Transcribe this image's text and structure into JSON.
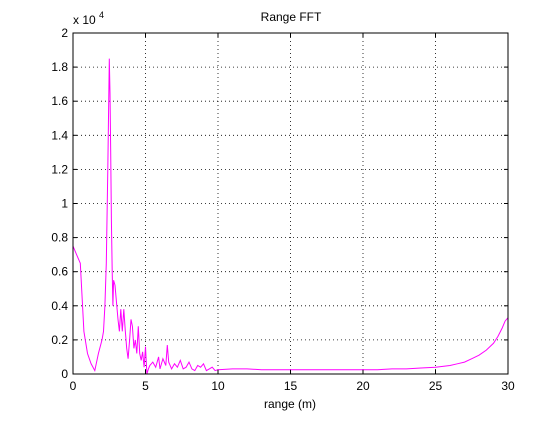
{
  "figure": {
    "background": "#ffffff"
  },
  "chart_data": {
    "type": "line",
    "title": "Range FFT",
    "xlabel": "range (m)",
    "ylabel": "",
    "y_exponent_label": "x 10",
    "y_exponent_power": "4",
    "xlim": [
      0,
      30
    ],
    "ylim": [
      0,
      20000
    ],
    "x_ticks": [
      0,
      5,
      10,
      15,
      20,
      25,
      30
    ],
    "x_tick_labels": [
      "0",
      "5",
      "10",
      "15",
      "20",
      "25",
      "30"
    ],
    "y_ticks": [
      0,
      2000,
      4000,
      6000,
      8000,
      10000,
      12000,
      14000,
      16000,
      18000,
      20000
    ],
    "y_tick_labels": [
      "0",
      "0.2",
      "0.4",
      "0.6",
      "0.8",
      "1",
      "1.2",
      "1.4",
      "1.6",
      "1.8",
      "2"
    ],
    "grid": true,
    "grid_style": "dotted",
    "legend": null,
    "series": [
      {
        "color": "#ff00ff",
        "x": [
          0,
          0.25,
          0.5,
          0.75,
          1.0,
          1.25,
          1.5,
          1.75,
          2.0,
          2.1,
          2.2,
          2.3,
          2.4,
          2.5,
          2.55,
          2.6,
          2.65,
          2.7,
          2.75,
          2.8,
          2.9,
          3.0,
          3.1,
          3.2,
          3.3,
          3.4,
          3.5,
          3.6,
          3.7,
          3.8,
          3.9,
          4.0,
          4.1,
          4.2,
          4.3,
          4.4,
          4.5,
          4.6,
          4.7,
          4.8,
          4.9,
          5.0,
          5.1,
          5.2,
          5.3,
          5.5,
          5.7,
          5.9,
          6.0,
          6.2,
          6.4,
          6.5,
          6.6,
          6.8,
          7.0,
          7.2,
          7.4,
          7.6,
          7.8,
          8.0,
          8.2,
          8.4,
          8.6,
          8.8,
          9.0,
          9.2,
          9.4,
          9.6,
          9.8,
          10,
          11,
          12,
          13,
          14,
          15,
          16,
          17,
          18,
          19,
          20,
          21,
          22,
          23,
          24,
          25,
          26,
          26.5,
          27,
          27.5,
          28,
          28.5,
          29,
          29.3,
          29.6,
          29.8,
          30
        ],
        "y": [
          7500,
          7000,
          6500,
          2500,
          1200,
          600,
          200,
          1200,
          2000,
          2500,
          4000,
          6500,
          12000,
          18500,
          16500,
          13000,
          9000,
          6000,
          4000,
          5500,
          5200,
          4200,
          3200,
          2500,
          3800,
          2500,
          3800,
          2600,
          1500,
          900,
          2000,
          3200,
          2800,
          1500,
          2000,
          1200,
          2800,
          1200,
          800,
          1300,
          400,
          1600,
          0,
          300,
          500,
          700,
          400,
          1000,
          300,
          900,
          500,
          1700,
          700,
          300,
          600,
          400,
          800,
          300,
          400,
          700,
          300,
          200,
          500,
          400,
          600,
          200,
          300,
          400,
          200,
          250,
          300,
          300,
          250,
          250,
          250,
          250,
          250,
          250,
          250,
          250,
          250,
          300,
          300,
          350,
          400,
          500,
          600,
          700,
          900,
          1100,
          1400,
          1800,
          2200,
          2700,
          3100,
          3300
        ]
      }
    ]
  }
}
